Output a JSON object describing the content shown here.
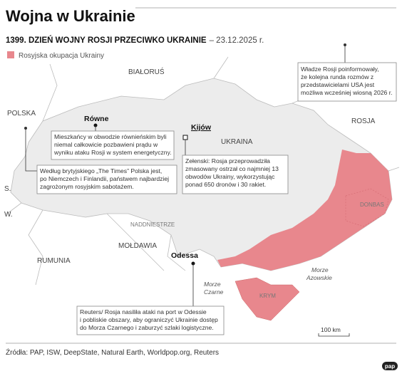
{
  "header": {
    "title": "Wojna w Ukrainie",
    "subtitle_bold": "1399. DZIEŃ WOJNY ROSJI PRZECIWKO UKRAINIE",
    "subtitle_date": "– 23.12.2025 r."
  },
  "legend": {
    "label": "Rosyjska okupacja Ukrainy"
  },
  "countries": [
    "BIAŁORUŚ",
    "POLSKA",
    "ROSJA",
    "UKRAINA",
    "RUMUNIA",
    "MOŁDAWIA",
    "S.",
    "W."
  ],
  "regions": [
    "NADDNIESTRZE",
    "DONBAS",
    "KRYM"
  ],
  "seas": [
    [
      "Morze",
      "Czarne"
    ],
    [
      "Morze",
      "Azowskie"
    ]
  ],
  "cities": [
    "Równe",
    "Kijów",
    "Odessa"
  ],
  "annotations": [
    {
      "lines": [
        "Władze Rosji poinformowały,",
        "że kolejna runda rozmów z",
        "przedstawicielami USA jest",
        "możliwa wcześniej wiosną 2026 r."
      ]
    },
    {
      "lines": [
        "Mieszkańcy w obwodzie równieńskim byli",
        "niemal całkowicie pozbawieni prądu w",
        "wyniku ataku Rosji w system energetyczny."
      ]
    },
    {
      "lines": [
        "Według brytyjskiego „The Times” Polska jest,",
        "po Niemczech i Finlandii, państwem najbardziej",
        "zagrożonym rosyjskim sabotażem."
      ]
    },
    {
      "lines": [
        "Zełenski: Rosja przeprowadziła",
        "zmasowany ostrzał co najmniej 13",
        "obwodów Ukrainy, wykorzystując",
        "ponad 650 dronów i 30 rakiet."
      ]
    },
    {
      "lines": [
        "Reuters/ Rosja nasiliła ataki na port w Odessie",
        "i pobliskie obszary, aby ograniczyć Ukrainie dostęp",
        "do Morza Czarnego i zaburzyć szlaki logistyczne."
      ]
    }
  ],
  "scale": "100 km",
  "footer": {
    "source": "Źródła: PAP, ISW, DeepState, Natural Earth, Worldpop.org, Reuters",
    "logo": "pap"
  }
}
